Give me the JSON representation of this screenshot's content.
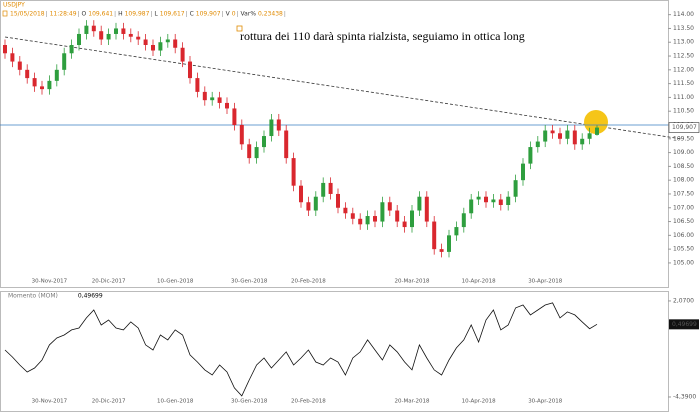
{
  "chart_data": [
    {
      "type": "candlestick",
      "header": {
        "symbol": "USDJPY",
        "date": "15/05/2018",
        "time": "11:28:49",
        "fields": [
          {
            "key": "O",
            "value": "109,641"
          },
          {
            "key": "H",
            "value": "109,987"
          },
          {
            "key": "L",
            "value": "109,617"
          },
          {
            "key": "C",
            "value": "109,907"
          },
          {
            "key": "V",
            "value": "0"
          },
          {
            "key": "Var%",
            "value": "0,23438"
          }
        ]
      },
      "annotation": "rottura dei 110 darà spinta rialzista, seguiamo in ottica long",
      "categories": [
        null,
        null,
        null,
        null,
        null,
        null,
        "30-Nov-2017",
        null,
        null,
        null,
        null,
        null,
        null,
        null,
        "20-Dic-2017",
        null,
        null,
        null,
        null,
        null,
        null,
        null,
        null,
        "10-Gen-2018",
        null,
        null,
        null,
        null,
        null,
        null,
        null,
        null,
        null,
        "30-Gen-2018",
        null,
        null,
        null,
        null,
        null,
        null,
        null,
        "20-Feb-2018",
        null,
        null,
        null,
        null,
        null,
        null,
        null,
        null,
        null,
        null,
        null,
        null,
        null,
        "20-Mar-2018",
        null,
        null,
        null,
        null,
        null,
        null,
        null,
        null,
        "10-Apr-2018",
        null,
        null,
        null,
        null,
        null,
        null,
        null,
        null,
        "30-Apr-2018",
        null,
        null,
        null,
        null,
        null,
        null,
        null
      ],
      "open": [
        112.9,
        112.6,
        112.3,
        112.0,
        111.7,
        111.4,
        111.3,
        111.6,
        112.0,
        112.6,
        112.9,
        113.3,
        113.6,
        113.4,
        113.1,
        113.3,
        113.5,
        113.3,
        113.2,
        113.1,
        112.9,
        112.7,
        113.0,
        113.1,
        112.8,
        112.3,
        111.7,
        111.2,
        110.9,
        111.0,
        110.8,
        110.6,
        110.0,
        109.3,
        108.8,
        109.2,
        109.6,
        110.2,
        109.8,
        108.8,
        107.8,
        107.2,
        106.9,
        107.4,
        107.9,
        107.5,
        107.0,
        106.8,
        106.6,
        106.4,
        106.7,
        106.5,
        107.2,
        106.9,
        106.5,
        106.3,
        106.9,
        107.4,
        106.5,
        105.5,
        105.4,
        106.0,
        106.3,
        106.8,
        107.3,
        107.4,
        107.2,
        107.3,
        107.1,
        107.4,
        108.0,
        108.6,
        109.2,
        109.4,
        109.8,
        109.7,
        109.5,
        109.8,
        109.3,
        109.5,
        109.641
      ],
      "high": [
        113.1,
        112.8,
        112.5,
        112.2,
        111.9,
        111.6,
        111.8,
        112.2,
        112.8,
        113.1,
        113.5,
        113.8,
        113.8,
        113.6,
        113.5,
        113.7,
        113.7,
        113.5,
        113.4,
        113.3,
        113.1,
        113.2,
        113.3,
        113.3,
        113.0,
        112.5,
        111.9,
        111.4,
        111.2,
        111.2,
        111.0,
        110.8,
        110.2,
        109.5,
        109.4,
        109.8,
        110.4,
        110.4,
        110.0,
        109.0,
        108.0,
        107.4,
        107.6,
        108.1,
        108.1,
        107.7,
        107.2,
        107.0,
        106.8,
        106.9,
        106.9,
        107.4,
        107.4,
        107.1,
        106.7,
        107.1,
        107.6,
        107.6,
        106.7,
        105.7,
        106.2,
        106.5,
        107.0,
        107.5,
        107.6,
        107.6,
        107.5,
        107.5,
        107.6,
        108.2,
        108.8,
        109.4,
        109.6,
        110.0,
        110.0,
        109.9,
        110.0,
        110.0,
        109.7,
        109.9,
        109.987
      ],
      "low": [
        112.4,
        112.1,
        111.8,
        111.5,
        111.2,
        111.1,
        111.1,
        111.4,
        111.8,
        112.4,
        112.7,
        113.1,
        113.2,
        112.9,
        112.9,
        113.1,
        113.1,
        113.0,
        112.9,
        112.7,
        112.5,
        112.5,
        112.8,
        112.6,
        112.1,
        111.5,
        111.0,
        110.7,
        110.7,
        110.6,
        110.4,
        109.8,
        109.1,
        108.6,
        108.6,
        109.0,
        109.4,
        109.6,
        108.6,
        107.6,
        107.0,
        106.7,
        106.7,
        107.2,
        107.3,
        106.8,
        106.6,
        106.4,
        106.2,
        106.2,
        106.3,
        106.3,
        106.7,
        106.3,
        106.1,
        106.1,
        106.7,
        106.3,
        105.3,
        105.2,
        105.2,
        105.8,
        106.1,
        106.6,
        107.1,
        107.0,
        107.0,
        106.9,
        106.9,
        107.2,
        107.8,
        108.4,
        109.0,
        109.2,
        109.5,
        109.3,
        109.3,
        109.1,
        109.1,
        109.3,
        109.617
      ],
      "close": [
        112.6,
        112.3,
        112.0,
        111.7,
        111.4,
        111.3,
        111.6,
        112.0,
        112.6,
        112.9,
        113.3,
        113.6,
        113.4,
        113.1,
        113.3,
        113.5,
        113.3,
        113.2,
        113.1,
        112.9,
        112.7,
        113.0,
        113.1,
        112.8,
        112.3,
        111.7,
        111.2,
        110.9,
        111.0,
        110.8,
        110.6,
        110.0,
        109.3,
        108.8,
        109.2,
        109.6,
        110.2,
        109.8,
        108.8,
        107.8,
        107.2,
        106.9,
        107.4,
        107.9,
        107.5,
        107.0,
        106.8,
        106.6,
        106.4,
        106.7,
        106.5,
        107.2,
        106.9,
        106.5,
        106.3,
        106.9,
        107.4,
        106.5,
        105.5,
        105.4,
        106.0,
        106.3,
        106.8,
        107.3,
        107.4,
        107.2,
        107.3,
        107.1,
        107.4,
        108.0,
        108.6,
        109.2,
        109.4,
        109.8,
        109.7,
        109.5,
        109.8,
        109.3,
        109.5,
        109.7,
        109.907
      ],
      "up_color": "#2e9e3e",
      "down_color": "#d9272e",
      "ylim": [
        104.2,
        114.35
      ],
      "yticks": [
        {
          "value": 105,
          "label": "105.00"
        },
        {
          "value": 105.5,
          "label": "105.50"
        },
        {
          "value": 106,
          "label": "106.00"
        },
        {
          "value": 106.5,
          "label": "106.50"
        },
        {
          "value": 107,
          "label": "107.00"
        },
        {
          "value": 107.5,
          "label": "107.50"
        },
        {
          "value": 108,
          "label": "108.00"
        },
        {
          "value": 108.5,
          "label": "108.50"
        },
        {
          "value": 109,
          "label": "109.00"
        },
        {
          "value": 109.5,
          "label": "109.50"
        },
        {
          "value": 110,
          "label": "110.00"
        },
        {
          "value": 110.5,
          "label": "110.50"
        },
        {
          "value": 111,
          "label": "111.00"
        },
        {
          "value": 111.5,
          "label": "111.50"
        },
        {
          "value": 112,
          "label": "112.00"
        },
        {
          "value": 112.5,
          "label": "112.50"
        },
        {
          "value": 113,
          "label": "113.00"
        },
        {
          "value": 113.5,
          "label": "113.50"
        },
        {
          "value": 114,
          "label": "114.00"
        }
      ],
      "horizontal_line": 110,
      "last_price": {
        "value": 109.907,
        "label": "109,907"
      }
    },
    {
      "type": "line",
      "title": "Momento (MOM)",
      "categories": [
        null,
        null,
        null,
        null,
        null,
        null,
        "30-Nov-2017",
        null,
        null,
        null,
        null,
        null,
        null,
        null,
        "20-Dic-2017",
        null,
        null,
        null,
        null,
        null,
        null,
        null,
        null,
        "10-Gen-2018",
        null,
        null,
        null,
        null,
        null,
        null,
        null,
        null,
        null,
        "30-Gen-2018",
        null,
        null,
        null,
        null,
        null,
        null,
        null,
        "20-Feb-2018",
        null,
        null,
        null,
        null,
        null,
        null,
        null,
        null,
        null,
        null,
        null,
        null,
        null,
        "20-Mar-2018",
        null,
        null,
        null,
        null,
        null,
        null,
        null,
        null,
        "10-Apr-2018",
        null,
        null,
        null,
        null,
        null,
        null,
        null,
        null,
        "30-Apr-2018",
        null,
        null,
        null,
        null,
        null,
        null,
        null
      ],
      "values": [
        -1.23,
        -1.7,
        -2.24,
        -2.71,
        -2.44,
        -1.9,
        -0.89,
        -0.42,
        -0.22,
        0.12,
        0.25,
        0.93,
        1.46,
        0.45,
        0.79,
        0.25,
        0.12,
        0.66,
        0.25,
        -0.89,
        -1.23,
        -0.22,
        -0.55,
        0.12,
        -0.22,
        -1.56,
        -2.04,
        -2.57,
        -2.91,
        -2.24,
        -2.71,
        -3.78,
        -4.32,
        -3.25,
        -2.24,
        -1.77,
        -2.44,
        -1.9,
        -1.36,
        -2.24,
        -1.77,
        -1.23,
        -2.04,
        -2.24,
        -1.77,
        -2.04,
        -2.91,
        -1.77,
        -1.36,
        -0.55,
        -1.23,
        -1.9,
        -0.89,
        -1.36,
        -2.04,
        -2.57,
        -0.89,
        -1.77,
        -2.57,
        -2.91,
        -1.9,
        -1.09,
        -0.55,
        0.45,
        -0.69,
        0.79,
        1.46,
        0.12,
        0.45,
        1.6,
        1.8,
        1.13,
        1.46,
        1.8,
        1.94,
        0.93,
        1.33,
        1.13,
        0.66,
        0.2,
        0.49699
      ],
      "color": "#111111",
      "ylim": [
        -4.93,
        2.47
      ],
      "yticks": [
        {
          "value": 2.07,
          "label": "2,0700"
        },
        {
          "value": -4.39,
          "label": "-4,3900"
        }
      ],
      "current": {
        "value": 0.49699,
        "label": "0,49699"
      }
    }
  ]
}
